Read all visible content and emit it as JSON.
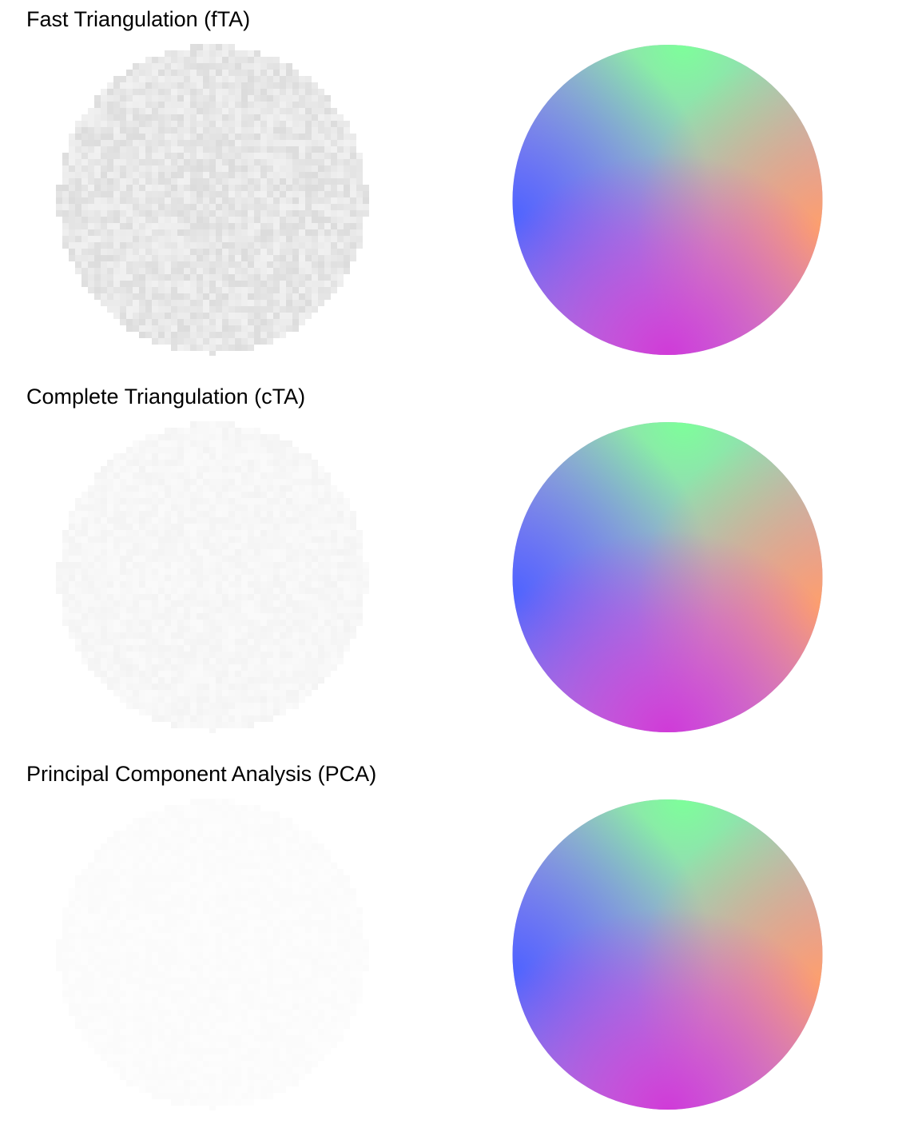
{
  "rows": [
    {
      "title": "Fast Triangulation (fTA)",
      "error_image": "grey-noise-sphere",
      "normal_image": "rgb-normal-sphere",
      "error_intensity": 0.55
    },
    {
      "title": "Complete Triangulation (cTA)",
      "error_image": "grey-noise-sphere",
      "normal_image": "rgb-normal-sphere",
      "error_intensity": 0.18
    },
    {
      "title": "Principal Component Analysis (PCA)",
      "error_image": "grey-noise-sphere",
      "normal_image": "rgb-normal-sphere",
      "error_intensity": 0.07
    }
  ],
  "colors": {
    "background": "#ffffff",
    "text": "#000000",
    "normal_top": "#7dff9a",
    "normal_left": "#4f63ff",
    "normal_right": "#ffa06a",
    "normal_bottom": "#d03ad8",
    "normal_center": "#b8a2d8"
  }
}
